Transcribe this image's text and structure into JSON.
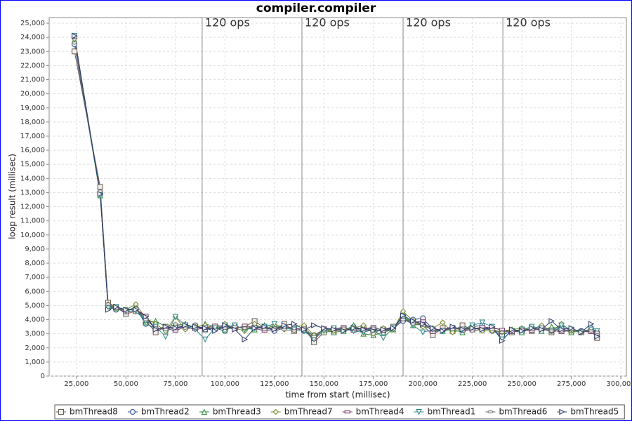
{
  "chart_data": {
    "type": "line",
    "title": "compiler.compiler",
    "x_label": "time from start (millisec)",
    "y_label": "loop result (millisec)",
    "x": [
      24000,
      37000,
      41000,
      45000,
      50000,
      55000,
      60000,
      65000,
      70000,
      75000,
      80000,
      85000,
      90000,
      95000,
      100000,
      105000,
      110000,
      115000,
      120000,
      125000,
      130000,
      135000,
      140000,
      145000,
      150000,
      155000,
      160000,
      165000,
      170000,
      175000,
      180000,
      185000,
      190000,
      195000,
      200000,
      205000,
      210000,
      215000,
      220000,
      225000,
      230000,
      235000,
      240000,
      245000,
      250000,
      255000,
      260000,
      265000,
      270000,
      275000,
      280000,
      285000,
      288000
    ],
    "series": [
      {
        "name": "bmThread8",
        "color": "#6b5a4a",
        "marker": "square",
        "values": [
          23000,
          13400,
          5200,
          4900,
          4400,
          4600,
          3900,
          3100,
          3500,
          3300,
          3600,
          3500,
          3300,
          3500,
          3600,
          3400,
          3500,
          3900,
          3400,
          3300,
          3700,
          3200,
          3400,
          2400,
          3100,
          3200,
          3400,
          3300,
          3400,
          3200,
          3300,
          3500,
          4100,
          3900,
          3600,
          2900,
          3400,
          3200,
          3600,
          3300,
          3400,
          3300,
          3000,
          3100,
          3300,
          3200,
          3400,
          3100,
          3300,
          3200,
          3100,
          3200,
          2700
        ]
      },
      {
        "name": "bmThread2",
        "color": "#2a4f8f",
        "marker": "circle",
        "values": [
          23500,
          12900,
          5000,
          4700,
          4700,
          4800,
          3700,
          3400,
          3300,
          3500,
          3400,
          3600,
          3300,
          3400,
          3200,
          3600,
          3300,
          3500,
          3500,
          3200,
          3400,
          3300,
          3200,
          2900,
          3300,
          3400,
          3200,
          3500,
          3300,
          3400,
          3100,
          3400,
          3900,
          4000,
          4100,
          3300,
          3200,
          3400,
          3300,
          3500,
          3600,
          3200,
          2900,
          3200,
          3100,
          3400,
          3300,
          3200,
          3400,
          3300,
          3200,
          3300,
          3100
        ]
      },
      {
        "name": "bmThread3",
        "color": "#2f8a3c",
        "marker": "triangle-up",
        "values": [
          23800,
          12800,
          4900,
          4800,
          4600,
          4900,
          3800,
          3900,
          3500,
          3600,
          3700,
          3400,
          3700,
          3500,
          3300,
          3500,
          3400,
          3300,
          3600,
          3500,
          3500,
          3400,
          3300,
          2700,
          3300,
          3100,
          3200,
          3600,
          3000,
          2900,
          3100,
          3300,
          4400,
          3600,
          3700,
          3200,
          3200,
          3300,
          3100,
          3400,
          3300,
          3500,
          3200,
          3300,
          3100,
          3400,
          3200,
          3500,
          3300,
          3100,
          3200,
          3200,
          3000
        ]
      },
      {
        "name": "bmThread7",
        "color": "#7a8a2a",
        "marker": "diamond",
        "values": [
          23900,
          12900,
          5100,
          4900,
          4700,
          5100,
          4100,
          3700,
          3200,
          4200,
          3300,
          3500,
          3600,
          3300,
          3700,
          3400,
          3200,
          3700,
          3300,
          3600,
          3300,
          3500,
          3600,
          2900,
          3300,
          3200,
          3300,
          3400,
          3600,
          3000,
          3400,
          3300,
          4600,
          3900,
          3500,
          3400,
          3800,
          3100,
          3300,
          3500,
          3200,
          3200,
          3100,
          3300,
          3400,
          3300,
          3600,
          3200,
          3700,
          3200,
          3100,
          3300,
          3100
        ]
      },
      {
        "name": "bmThread4",
        "color": "#7a3a6a",
        "marker": "rect",
        "values": [
          24000,
          13000,
          5000,
          4800,
          4500,
          4700,
          4300,
          3300,
          3400,
          3200,
          3500,
          3300,
          3400,
          3600,
          3500,
          3300,
          3600,
          3400,
          3200,
          3300,
          3500,
          3400,
          3300,
          2600,
          3400,
          3300,
          3500,
          3200,
          3300,
          3500,
          3200,
          3400,
          4000,
          3800,
          3900,
          3100,
          3300,
          3500,
          3200,
          3300,
          3500,
          3400,
          3300,
          3100,
          3300,
          3200,
          3400,
          3300,
          3100,
          3300,
          3200,
          3100,
          3000
        ]
      },
      {
        "name": "bmThread1",
        "color": "#2a8a8a",
        "marker": "triangle-down",
        "values": [
          24100,
          12800,
          4800,
          4900,
          4600,
          4600,
          3900,
          3500,
          2800,
          4200,
          3600,
          3300,
          2600,
          3400,
          3500,
          3600,
          3300,
          3400,
          3500,
          3700,
          3400,
          3300,
          3200,
          2600,
          3200,
          3400,
          3300,
          3200,
          3100,
          3300,
          2700,
          3400,
          4200,
          3600,
          3100,
          3300,
          3200,
          3400,
          3300,
          3600,
          3800,
          3500,
          2600,
          3200,
          3300,
          3500,
          3400,
          3200,
          3600,
          3300,
          3100,
          3300,
          3200
        ]
      },
      {
        "name": "bmThread6",
        "color": "#6a6a6a",
        "marker": "ellipse",
        "values": [
          23600,
          13100,
          5100,
          4800,
          4600,
          4800,
          4000,
          3400,
          3300,
          3700,
          3400,
          3400,
          3500,
          3300,
          3400,
          3500,
          3400,
          3500,
          3300,
          3400,
          3300,
          3200,
          3400,
          2800,
          3300,
          3300,
          3400,
          3300,
          3200,
          3400,
          3300,
          3300,
          4000,
          3700,
          3600,
          3300,
          3300,
          3300,
          3400,
          3200,
          3300,
          3300,
          3100,
          3200,
          3300,
          3300,
          3300,
          3200,
          3200,
          3300,
          3200,
          3200,
          3100
        ]
      },
      {
        "name": "bmThread5",
        "color": "#2a3a6a",
        "marker": "triangle-right",
        "values": [
          24100,
          12900,
          4700,
          4900,
          4700,
          4700,
          4200,
          3300,
          3500,
          3400,
          3600,
          3500,
          3400,
          3200,
          3600,
          3300,
          2600,
          3400,
          3500,
          3300,
          3600,
          3700,
          3300,
          3600,
          3400,
          3300,
          3200,
          3400,
          3300,
          3200,
          3300,
          3400,
          4300,
          3900,
          3700,
          3400,
          3200,
          3500,
          3300,
          3400,
          3300,
          3500,
          2500,
          3300,
          3200,
          3400,
          3300,
          3900,
          3300,
          3400,
          3100,
          3700,
          2800
        ]
      }
    ],
    "markers": [
      {
        "value": 88500,
        "label": "120 ops"
      },
      {
        "value": 138900,
        "label": "120 ops"
      },
      {
        "value": 190000,
        "label": "120 ops"
      },
      {
        "value": 240400,
        "label": "120 ops"
      }
    ],
    "xlim": [
      11200,
      302800
    ],
    "xticks": [
      {
        "value": 25000,
        "label": "25,000"
      },
      {
        "value": 50000,
        "label": "50,000"
      },
      {
        "value": 75000,
        "label": "75,000"
      },
      {
        "value": 100000,
        "label": "100,000"
      },
      {
        "value": 125000,
        "label": "125,000"
      },
      {
        "value": 150000,
        "label": "150,000"
      },
      {
        "value": 175000,
        "label": "175,000"
      },
      {
        "value": 200000,
        "label": "200,000"
      },
      {
        "value": 225000,
        "label": "225,000"
      },
      {
        "value": 250000,
        "label": "250,000"
      },
      {
        "value": 275000,
        "label": "275,000"
      },
      {
        "value": 300000,
        "label": "300,000"
      }
    ],
    "ylim": [
      0,
      25400
    ],
    "yticks": [
      0,
      {
        "value": 1000,
        "label": "1,000"
      },
      {
        "value": 2000,
        "label": "2,000"
      },
      {
        "value": 3000,
        "label": "3,000"
      },
      {
        "value": 4000,
        "label": "4,000"
      },
      {
        "value": 5000,
        "label": "5,000"
      },
      {
        "value": 6000,
        "label": "6,000"
      },
      {
        "value": 7000,
        "label": "7,000"
      },
      {
        "value": 8000,
        "label": "8,000"
      },
      {
        "value": 9000,
        "label": "9,000"
      },
      {
        "value": 10000,
        "label": "10,000"
      },
      {
        "value": 11000,
        "label": "11,000"
      },
      {
        "value": 12000,
        "label": "12,000"
      },
      {
        "value": 13000,
        "label": "13,000"
      },
      {
        "value": 14000,
        "label": "14,000"
      },
      {
        "value": 15000,
        "label": "15,000"
      },
      {
        "value": 16000,
        "label": "16,000"
      },
      {
        "value": 17000,
        "label": "17,000"
      },
      {
        "value": 18000,
        "label": "18,000"
      },
      {
        "value": 19000,
        "label": "19,000"
      },
      {
        "value": 20000,
        "label": "20,000"
      },
      {
        "value": 21000,
        "label": "21,000"
      },
      {
        "value": 22000,
        "label": "22,000"
      },
      {
        "value": 23000,
        "label": "23,000"
      },
      {
        "value": 24000,
        "label": "24,000"
      },
      {
        "value": 25000,
        "label": "25,000"
      }
    ],
    "grid": true,
    "legend": "bottom"
  }
}
